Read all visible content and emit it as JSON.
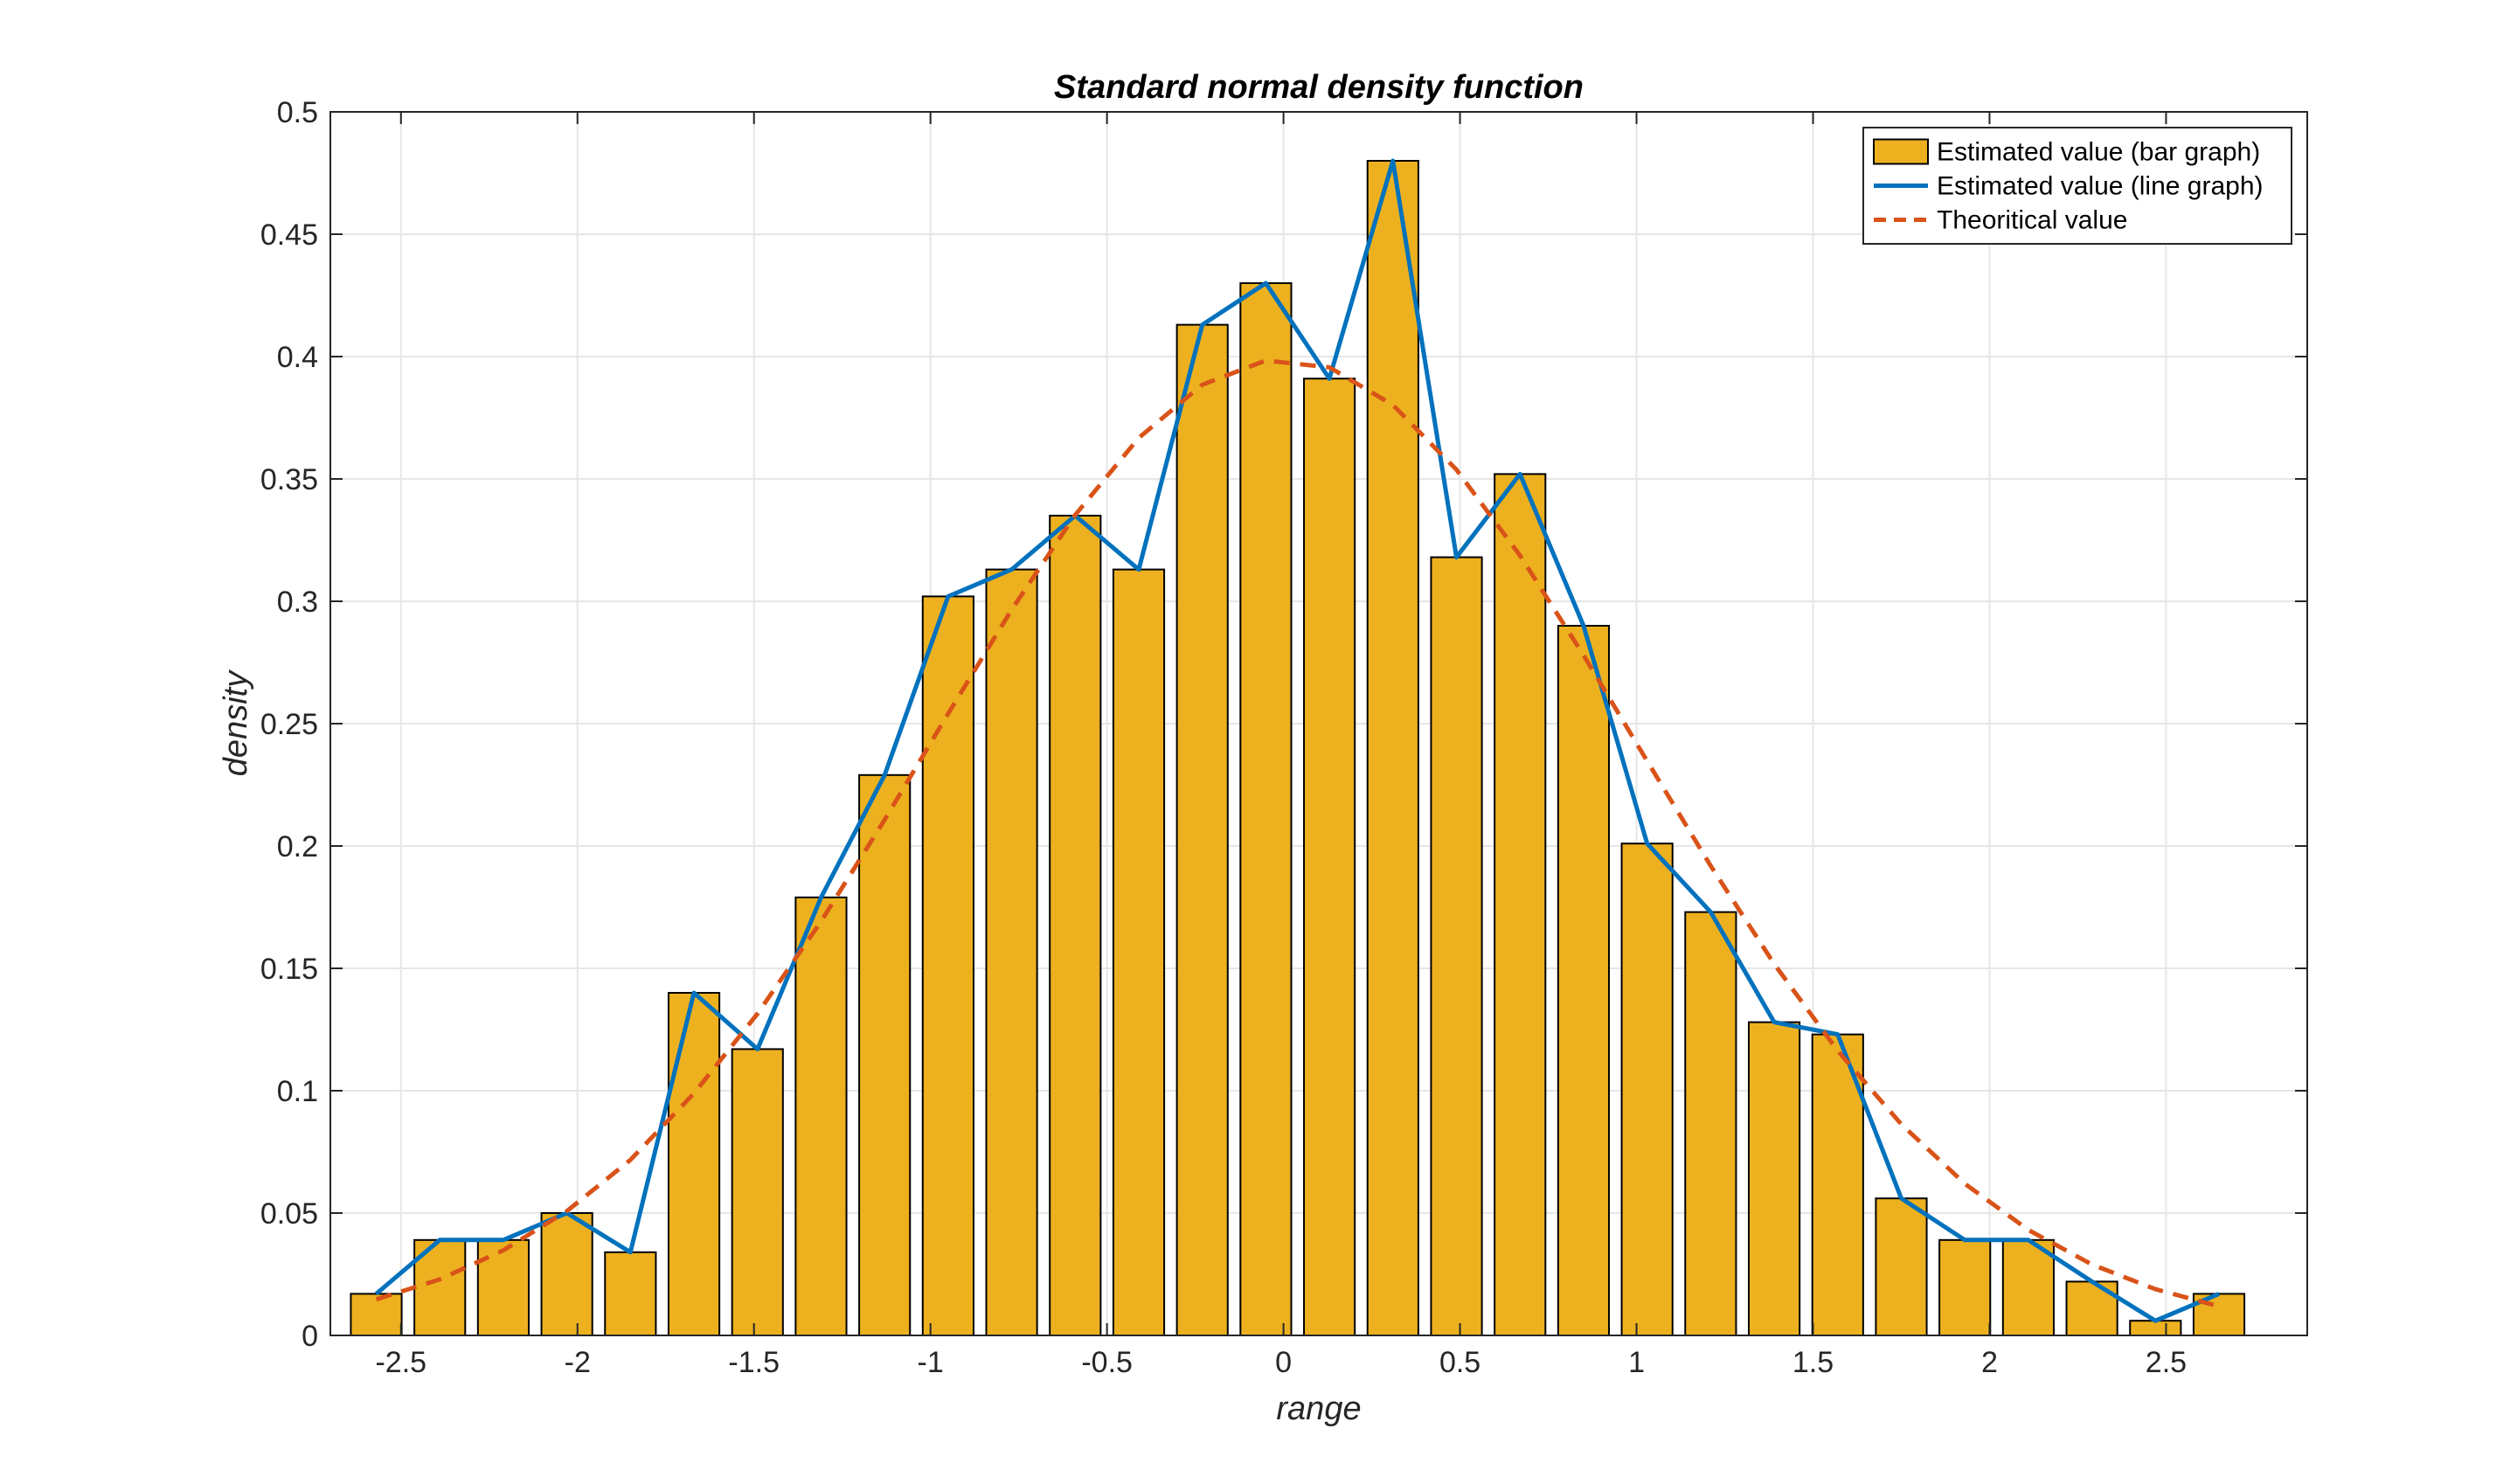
{
  "chart_data": {
    "type": "bar",
    "title": "Standard normal density function",
    "xlabel": "range",
    "ylabel": "density",
    "xlim": [
      -2.7,
      2.9
    ],
    "ylim": [
      0,
      0.5
    ],
    "grid": true,
    "legend_position": "top-right",
    "xticks": [
      -2.5,
      -2,
      -1.5,
      -1,
      -0.5,
      0,
      0.5,
      1,
      1.5,
      2,
      2.5
    ],
    "xtick_labels": [
      "-2.5",
      "-2",
      "-1.5",
      "-1",
      "-0.5",
      "0",
      "0.5",
      "1",
      "1.5",
      "2",
      "2.5"
    ],
    "yticks": [
      0,
      0.05,
      0.1,
      0.15,
      0.2,
      0.25,
      0.3,
      0.35,
      0.4,
      0.45,
      0.5
    ],
    "ytick_labels": [
      "0",
      "0.05",
      "0.1",
      "0.15",
      "0.2",
      "0.25",
      "0.3",
      "0.35",
      "0.4",
      "0.45",
      "0.5"
    ],
    "x": [
      -2.57,
      -2.39,
      -2.21,
      -2.03,
      -1.85,
      -1.67,
      -1.49,
      -1.31,
      -1.13,
      -0.95,
      -0.77,
      -0.59,
      -0.41,
      -0.23,
      -0.05,
      0.13,
      0.31,
      0.49,
      0.67,
      0.85,
      1.03,
      1.21,
      1.39,
      1.57,
      1.75,
      1.93,
      2.11,
      2.29,
      2.47,
      2.65
    ],
    "series": [
      {
        "name": "Estimated value (bar graph)",
        "type": "bar",
        "color": "#EDB120",
        "values": [
          0.017,
          0.039,
          0.039,
          0.05,
          0.034,
          0.14,
          0.117,
          0.179,
          0.229,
          0.302,
          0.313,
          0.335,
          0.313,
          0.413,
          0.43,
          0.391,
          0.48,
          0.318,
          0.352,
          0.29,
          0.201,
          0.173,
          0.128,
          0.123,
          0.056,
          0.039,
          0.039,
          0.022,
          0.006,
          0.017
        ]
      },
      {
        "name": "Estimated value (line graph)",
        "type": "line",
        "color": "#0072BD",
        "values": [
          0.017,
          0.039,
          0.039,
          0.05,
          0.034,
          0.14,
          0.117,
          0.179,
          0.229,
          0.302,
          0.313,
          0.335,
          0.313,
          0.413,
          0.43,
          0.391,
          0.48,
          0.318,
          0.352,
          0.29,
          0.201,
          0.173,
          0.128,
          0.123,
          0.056,
          0.039,
          0.039,
          0.022,
          0.006,
          0.017
        ]
      },
      {
        "name": "Theoritical value",
        "type": "line",
        "style": "dashed",
        "color": "#D95319",
        "values": [
          0.0147,
          0.0229,
          0.0348,
          0.0508,
          0.0717,
          0.0989,
          0.1315,
          0.1692,
          0.2107,
          0.2541,
          0.2966,
          0.3353,
          0.3668,
          0.3885,
          0.3984,
          0.3956,
          0.3802,
          0.3538,
          0.3187,
          0.278,
          0.2347,
          0.1919,
          0.1518,
          0.1163,
          0.0863,
          0.062,
          0.0431,
          0.029,
          0.0189,
          0.0119
        ]
      }
    ]
  }
}
